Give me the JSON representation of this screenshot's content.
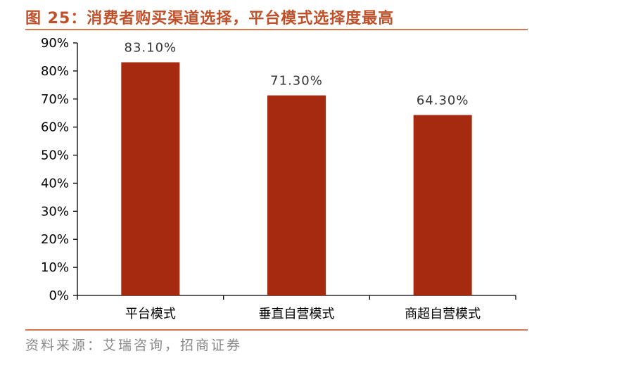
{
  "figure": {
    "title": "图 25：消费者购买渠道选择，平台模式选择度最高",
    "source": "资料来源：艾瑞咨询，招商证券"
  },
  "colors": {
    "bar": "#a52a10",
    "title": "#c0502a",
    "rule": "#d4764e",
    "source": "#8a8a8a"
  },
  "chart_data": {
    "type": "bar",
    "title": "",
    "xlabel": "",
    "ylabel": "",
    "categories": [
      "平台模式",
      "垂直自营模式",
      "商超自营模式"
    ],
    "values": [
      83.1,
      71.3,
      64.3
    ],
    "data_labels": [
      "83.10%",
      "71.30%",
      "64.30%"
    ],
    "ylim": [
      0,
      90
    ],
    "yticks": [
      0,
      10,
      20,
      30,
      40,
      50,
      60,
      70,
      80,
      90
    ],
    "ytick_labels": [
      "0%",
      "10%",
      "20%",
      "30%",
      "40%",
      "50%",
      "60%",
      "70%",
      "80%",
      "90%"
    ],
    "grid": false,
    "legend": "none"
  }
}
